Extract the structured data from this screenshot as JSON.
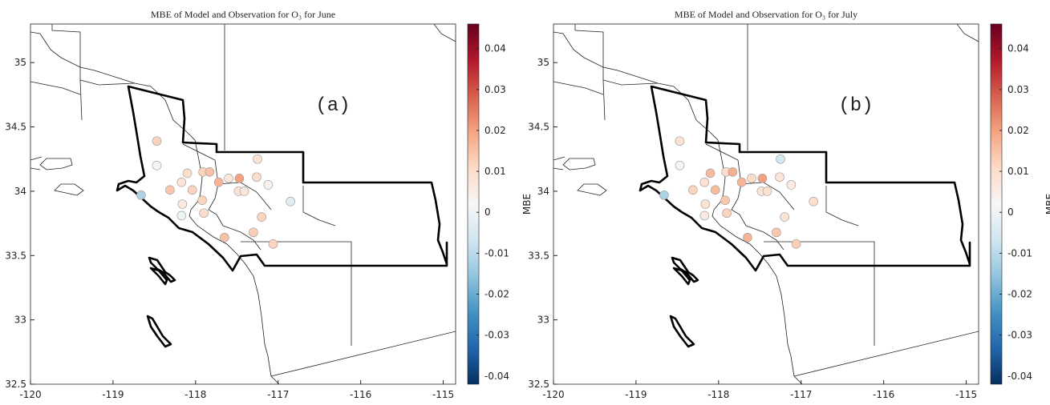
{
  "chart_data": [
    {
      "type": "scatter",
      "title": "MBE of Model and Observation for O₃ for June",
      "annotation": "(a)",
      "x": [
        -118.47,
        -118.47,
        -118.66,
        -118.1,
        -118.17,
        -117.91,
        -117.83,
        -117.72,
        -118.04,
        -118.31,
        -118.16,
        -117.92,
        -117.9,
        -118.17,
        -117.6,
        -117.47,
        -117.48,
        -117.41,
        -117.25,
        -117.26,
        -117.12,
        -116.85,
        -117.2,
        -117.3,
        -117.06,
        -117.65
      ],
      "y": [
        34.39,
        34.2,
        33.97,
        34.14,
        34.07,
        34.15,
        34.15,
        34.07,
        34.01,
        34.01,
        33.9,
        33.93,
        33.83,
        33.81,
        34.1,
        34.1,
        34.0,
        34.0,
        34.25,
        34.11,
        34.05,
        33.92,
        33.8,
        33.68,
        33.59,
        33.64
      ],
      "values": [
        0.012,
        0.003,
        -0.012,
        0.01,
        0.008,
        0.012,
        0.015,
        0.017,
        0.012,
        0.014,
        0.006,
        0.012,
        0.01,
        0.0,
        0.007,
        0.02,
        0.008,
        0.007,
        0.008,
        0.01,
        0.004,
        -0.003,
        0.012,
        0.013,
        0.012,
        0.015
      ],
      "xlim": [
        -120,
        -114.85
      ],
      "ylim": [
        32.5,
        35.3
      ],
      "xticks": [
        -120,
        -119,
        -118,
        -117,
        -116,
        -115
      ],
      "yticks": [
        32.5,
        33,
        33.5,
        34,
        34.5,
        35
      ],
      "colormap": "RdBu_r",
      "colorbar_label": "MBE",
      "clim": [
        -0.042,
        0.046
      ],
      "colorbar_ticks": [
        -0.04,
        -0.03,
        -0.02,
        -0.01,
        0,
        0.01,
        0.02,
        0.03,
        0.04
      ]
    },
    {
      "type": "scatter",
      "title": "MBE of Model and Observation for O₃ for July",
      "annotation": "(b)",
      "x": [
        -118.47,
        -118.47,
        -118.66,
        -118.1,
        -118.17,
        -117.91,
        -117.83,
        -117.72,
        -118.04,
        -118.31,
        -118.16,
        -117.92,
        -117.9,
        -118.17,
        -117.6,
        -117.47,
        -117.48,
        -117.41,
        -117.25,
        -117.26,
        -117.12,
        -116.85,
        -117.2,
        -117.3,
        -117.06,
        -117.65
      ],
      "y": [
        34.39,
        34.2,
        33.97,
        34.14,
        34.07,
        34.15,
        34.15,
        34.07,
        34.01,
        34.01,
        33.9,
        33.93,
        33.83,
        33.81,
        34.1,
        34.1,
        34.0,
        34.0,
        34.25,
        34.11,
        34.05,
        33.92,
        33.8,
        33.68,
        33.59,
        33.64
      ],
      "values": [
        0.008,
        0.003,
        -0.012,
        0.016,
        0.009,
        0.01,
        0.018,
        0.017,
        0.016,
        0.012,
        0.008,
        0.014,
        0.012,
        0.006,
        0.01,
        0.02,
        0.008,
        0.009,
        -0.006,
        0.008,
        0.006,
        0.01,
        0.008,
        0.014,
        0.013,
        0.017
      ],
      "xlim": [
        -120,
        -114.85
      ],
      "ylim": [
        32.5,
        35.3
      ],
      "xticks": [
        -120,
        -119,
        -118,
        -117,
        -116,
        -115
      ],
      "yticks": [
        32.5,
        33,
        33.5,
        34,
        34.5,
        35
      ],
      "colormap": "RdBu_r",
      "colorbar_label": "MBE",
      "clim": [
        -0.042,
        0.046
      ],
      "colorbar_ticks": [
        -0.04,
        -0.03,
        -0.02,
        -0.01,
        0,
        0.01,
        0.02,
        0.03,
        0.04
      ]
    }
  ]
}
